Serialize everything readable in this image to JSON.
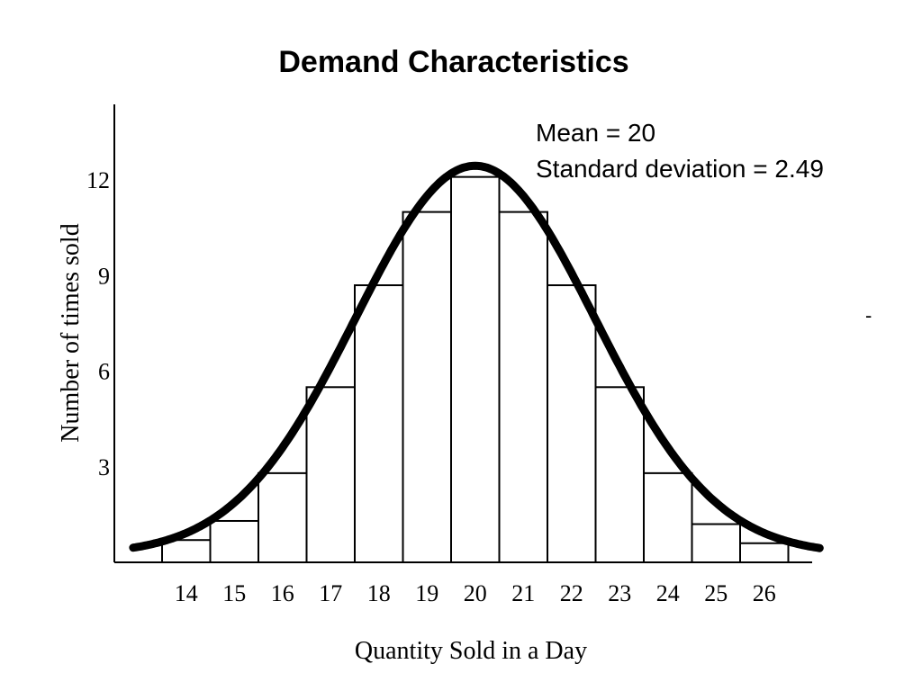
{
  "chart_data": {
    "type": "bar",
    "title": "Demand Characteristics",
    "annotations": [
      "Mean = 20",
      "Standard deviation = 2.49"
    ],
    "stray_mark": "-",
    "xlabel": "Quantity Sold in a Day",
    "ylabel": "Number of times sold",
    "categories": [
      "14",
      "15",
      "16",
      "17",
      "18",
      "19",
      "20",
      "21",
      "22",
      "23",
      "24",
      "25",
      "26"
    ],
    "values": [
      0.7,
      1.3,
      2.8,
      5.5,
      8.7,
      11.0,
      12.1,
      11.0,
      8.7,
      5.5,
      2.8,
      1.2,
      0.6
    ],
    "yticks": [
      "3",
      "6",
      "9",
      "12"
    ],
    "ylim": [
      0,
      15
    ],
    "overlay": {
      "type": "normal-curve",
      "mean": 20,
      "std": 2.49
    },
    "grid": false,
    "colors": {
      "bar_fill": "#ffffff",
      "bar_stroke": "#000000",
      "curve": "#000000"
    }
  }
}
